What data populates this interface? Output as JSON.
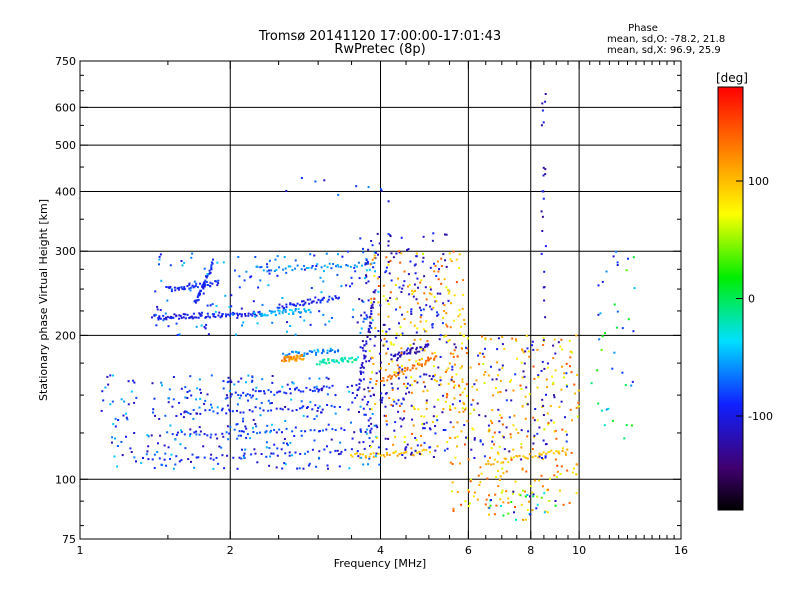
{
  "chart_data": {
    "type": "scatter",
    "title": "Tromsø 20141120 17:00:00-17:01:43",
    "subtitle": "RwPretec (8p)",
    "xlabel": "Frequency [MHz]",
    "ylabel": "Stationary phase Virtual Height [km]",
    "x_scale": "log",
    "y_scale": "log",
    "xlim": [
      1,
      16
    ],
    "ylim": [
      75,
      750
    ],
    "x_ticks": [
      1,
      2,
      4,
      6,
      8,
      10,
      16
    ],
    "y_ticks": [
      75,
      100,
      200,
      300,
      400,
      500,
      600,
      750
    ],
    "x_gridlines": [
      2,
      4,
      6,
      8,
      10
    ],
    "y_gridlines": [
      100,
      200,
      300,
      400,
      500,
      600
    ],
    "phase_stats": {
      "heading": "Phase",
      "line1": "mean, sd,O: -78.2, 21.8",
      "line2": "mean, sd,X:  96.9, 25.9"
    },
    "colorbar": {
      "label": "[deg]",
      "range": [
        -180,
        180
      ],
      "ticks": [
        100,
        0,
        -100
      ]
    },
    "traces": [
      {
        "f": [
          1.4,
          1.75
        ],
        "h": [
          218,
          220
        ],
        "phase": -100
      },
      {
        "f": [
          1.75,
          2.3
        ],
        "h": [
          220,
          222
        ],
        "phase": -95
      },
      {
        "f": [
          1.5,
          1.9
        ],
        "h": [
          250,
          258
        ],
        "phase": -90
      },
      {
        "f": [
          1.7,
          1.85
        ],
        "h": [
          232,
          285
        ],
        "phase": -95
      },
      {
        "f": [
          2.25,
          3.9
        ],
        "h": [
          275,
          282
        ],
        "phase": -60
      },
      {
        "f": [
          2.3,
          2.9
        ],
        "h": [
          222,
          226
        ],
        "phase": -50
      },
      {
        "f": [
          2.5,
          3.3
        ],
        "h": [
          230,
          240
        ],
        "phase": -95
      },
      {
        "f": [
          2.55,
          3.3
        ],
        "h": [
          182,
          186
        ],
        "phase": -60
      },
      {
        "f": [
          2.55,
          2.8
        ],
        "h": [
          178,
          180
        ],
        "phase": 120
      },
      {
        "f": [
          3.0,
          3.6
        ],
        "h": [
          176,
          178
        ],
        "phase": -20
      },
      {
        "f": [
          1.3,
          3.7
        ],
        "h": [
          110,
          115
        ],
        "phase": -95
      },
      {
        "f": [
          1.5,
          3.4
        ],
        "h": [
          124,
          128
        ],
        "phase": -85
      },
      {
        "f": [
          1.6,
          3.3
        ],
        "h": [
          138,
          142
        ],
        "phase": -90
      },
      {
        "f": [
          2.0,
          3.2
        ],
        "h": [
          150,
          155
        ],
        "phase": -90
      },
      {
        "f": [
          3.5,
          5.0
        ],
        "h": [
          112,
          114
        ],
        "phase": 100
      },
      {
        "f": [
          3.6,
          3.9
        ],
        "h": [
          150,
          250
        ],
        "phase": -110
      },
      {
        "f": [
          4.2,
          5.0
        ],
        "h": [
          180,
          190
        ],
        "phase": -120
      },
      {
        "f": [
          4.0,
          5.2
        ],
        "h": [
          160,
          180
        ],
        "phase": 130
      },
      {
        "f": [
          6.5,
          9.5
        ],
        "h": [
          108,
          115
        ],
        "phase": 100
      }
    ],
    "clouds": [
      {
        "f": [
          1.1,
          4.0
        ],
        "h": [
          105,
          165
        ],
        "n": 320,
        "phase": [
          -120,
          -40
        ]
      },
      {
        "f": [
          1.4,
          4.0
        ],
        "h": [
          200,
          300
        ],
        "n": 160,
        "phase": [
          -110,
          -40
        ]
      },
      {
        "f": [
          3.6,
          5.5
        ],
        "h": [
          110,
          330
        ],
        "n": 260,
        "phase": [
          -130,
          -80
        ]
      },
      {
        "f": [
          3.8,
          6.0
        ],
        "h": [
          115,
          300
        ],
        "n": 240,
        "phase": [
          60,
          150
        ]
      },
      {
        "f": [
          5.5,
          10.0
        ],
        "h": [
          85,
          200
        ],
        "n": 260,
        "phase": [
          60,
          150
        ]
      },
      {
        "f": [
          5.5,
          9.5
        ],
        "h": [
          110,
          200
        ],
        "n": 90,
        "phase": [
          -130,
          -80
        ]
      },
      {
        "f": [
          8.4,
          8.6
        ],
        "h": [
          110,
          650
        ],
        "n": 30,
        "phase": [
          -130,
          -90
        ]
      },
      {
        "f": [
          10.5,
          13.0
        ],
        "h": [
          120,
          300
        ],
        "n": 40,
        "phase": [
          -110,
          40
        ]
      },
      {
        "f": [
          6.5,
          9.0
        ],
        "h": [
          82,
          95
        ],
        "n": 40,
        "phase": [
          -130,
          150
        ]
      },
      {
        "f": [
          2.5,
          4.5
        ],
        "h": [
          380,
          430
        ],
        "n": 10,
        "phase": [
          -120,
          -60
        ]
      }
    ]
  }
}
